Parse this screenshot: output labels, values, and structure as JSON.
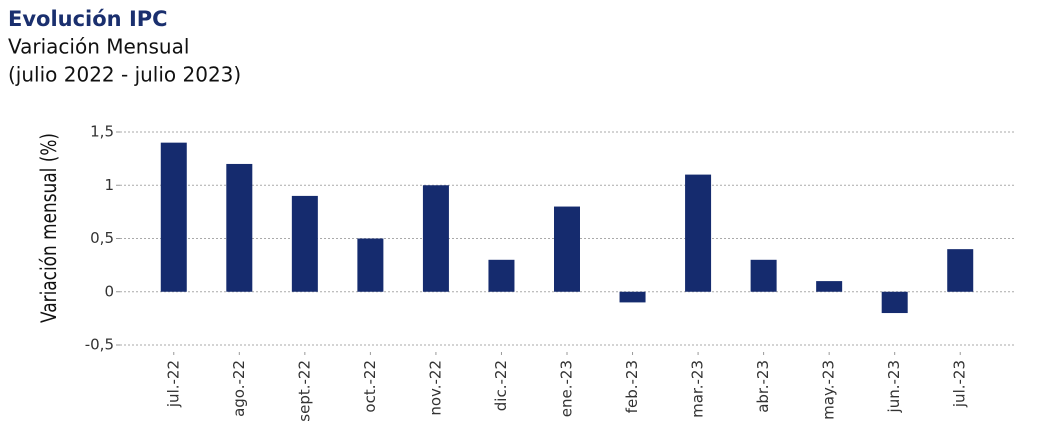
{
  "chart_data": {
    "type": "bar",
    "title": "Evolución IPC",
    "subtitle": "Variación Mensual",
    "subtitle2": "(julio 2022 - julio 2023)",
    "y_label": "Variación mensual (%)",
    "categories": [
      "jul.-22",
      "ago.-22",
      "sept.-22",
      "oct.-22",
      "nov.-22",
      "dic.-22",
      "ene.-23",
      "feb.-23",
      "mar.-23",
      "abr.-23",
      "may.-23",
      "jun.-23",
      "jul.-23"
    ],
    "values": [
      1.4,
      1.2,
      0.9,
      0.5,
      1.0,
      0.3,
      0.8,
      -0.1,
      1.1,
      0.3,
      0.1,
      -0.2,
      0.4
    ],
    "color": "#152b6e",
    "ylim": [
      -0.5,
      1.5
    ],
    "yticks": [
      {
        "value": 1.5,
        "label": "1,5"
      },
      1,
      {
        "value": 0.5,
        "label": "0,5"
      },
      0,
      {
        "value": -0.5,
        "label": "-0,5"
      }
    ],
    "grid": true
  }
}
